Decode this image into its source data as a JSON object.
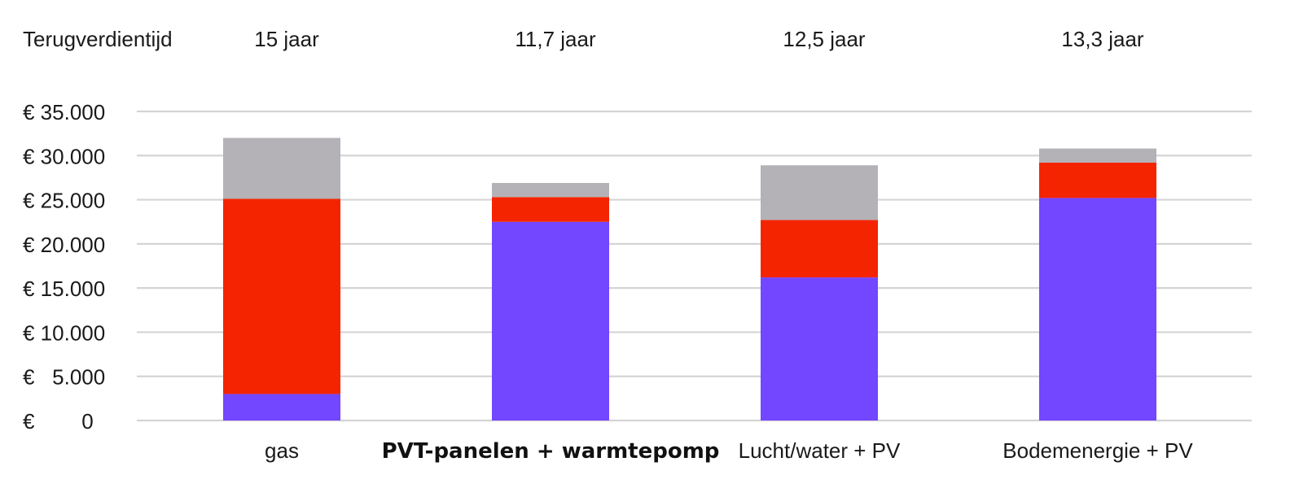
{
  "chart_data": {
    "type": "bar",
    "stacked": true,
    "categories": [
      "gas",
      "PVT-panelen + warmtepomp",
      "Lucht/water + PV",
      "Bodemenergie + PV"
    ],
    "category_bold": [
      false,
      true,
      false,
      false
    ],
    "series": [
      {
        "values": [
          3000,
          22500,
          16200,
          25200
        ],
        "color": "#7346FF"
      },
      {
        "values": [
          22100,
          2800,
          6500,
          4000
        ],
        "color": "#F42400"
      },
      {
        "values": [
          6900,
          1600,
          6200,
          1600
        ],
        "color": "#B4B2B6"
      }
    ],
    "payback": {
      "label": "Terugverdientijd",
      "values": [
        "15 jaar",
        "11,7 jaar",
        "12,5 jaar",
        "13,3 jaar"
      ]
    },
    "ylim": [
      0,
      35000
    ],
    "yticks": [
      0,
      5000,
      10000,
      15000,
      20000,
      25000,
      30000,
      35000
    ],
    "ytick_labels": [
      "€        0",
      "€   5.000",
      "€ 10.000",
      "€ 15.000",
      "€ 20.000",
      "€ 25.000",
      "€ 30.000",
      "€ 35.000"
    ],
    "grid": true,
    "gridline_color": "#D4D4D4",
    "title": "",
    "xlabel": "",
    "ylabel": ""
  }
}
